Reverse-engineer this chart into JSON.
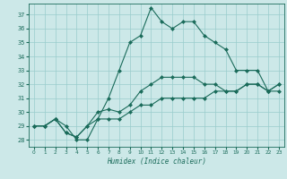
{
  "xlabel": "Humidex (Indice chaleur)",
  "x": [
    0,
    1,
    2,
    3,
    4,
    5,
    6,
    7,
    8,
    9,
    10,
    11,
    12,
    13,
    14,
    15,
    16,
    17,
    18,
    19,
    20,
    21,
    22,
    23
  ],
  "main_line": [
    29,
    29,
    29.5,
    29,
    28,
    28,
    29.5,
    31,
    33,
    35,
    35.5,
    37.5,
    36.5,
    36,
    36.5,
    36.5,
    35.5,
    35,
    34.5,
    33,
    33,
    33,
    31.5,
    32
  ],
  "line2": [
    29,
    29,
    29.5,
    28.5,
    28.2,
    29,
    30,
    30.2,
    30,
    30.5,
    31.5,
    32,
    32.5,
    32.5,
    32.5,
    32.5,
    32,
    32,
    31.5,
    31.5,
    32,
    32,
    31.5,
    31.5
  ],
  "line3": [
    29,
    29,
    29.5,
    28.5,
    28.2,
    29,
    29.5,
    29.5,
    29.5,
    30,
    30.5,
    30.5,
    31,
    31,
    31,
    31,
    31,
    31.5,
    31.5,
    31.5,
    32,
    32,
    31.5,
    32
  ],
  "ylim": [
    27.5,
    37.8
  ],
  "xlim": [
    -0.5,
    23.5
  ],
  "yticks": [
    28,
    29,
    30,
    31,
    32,
    33,
    34,
    35,
    36,
    37
  ],
  "xticks": [
    0,
    1,
    2,
    3,
    4,
    5,
    6,
    7,
    8,
    9,
    10,
    11,
    12,
    13,
    14,
    15,
    16,
    17,
    18,
    19,
    20,
    21,
    22,
    23
  ],
  "bg_color": "#cce8e8",
  "line_color": "#1a6b5a",
  "grid_color": "#99cccc",
  "markersize": 2.5,
  "linewidth": 0.8
}
